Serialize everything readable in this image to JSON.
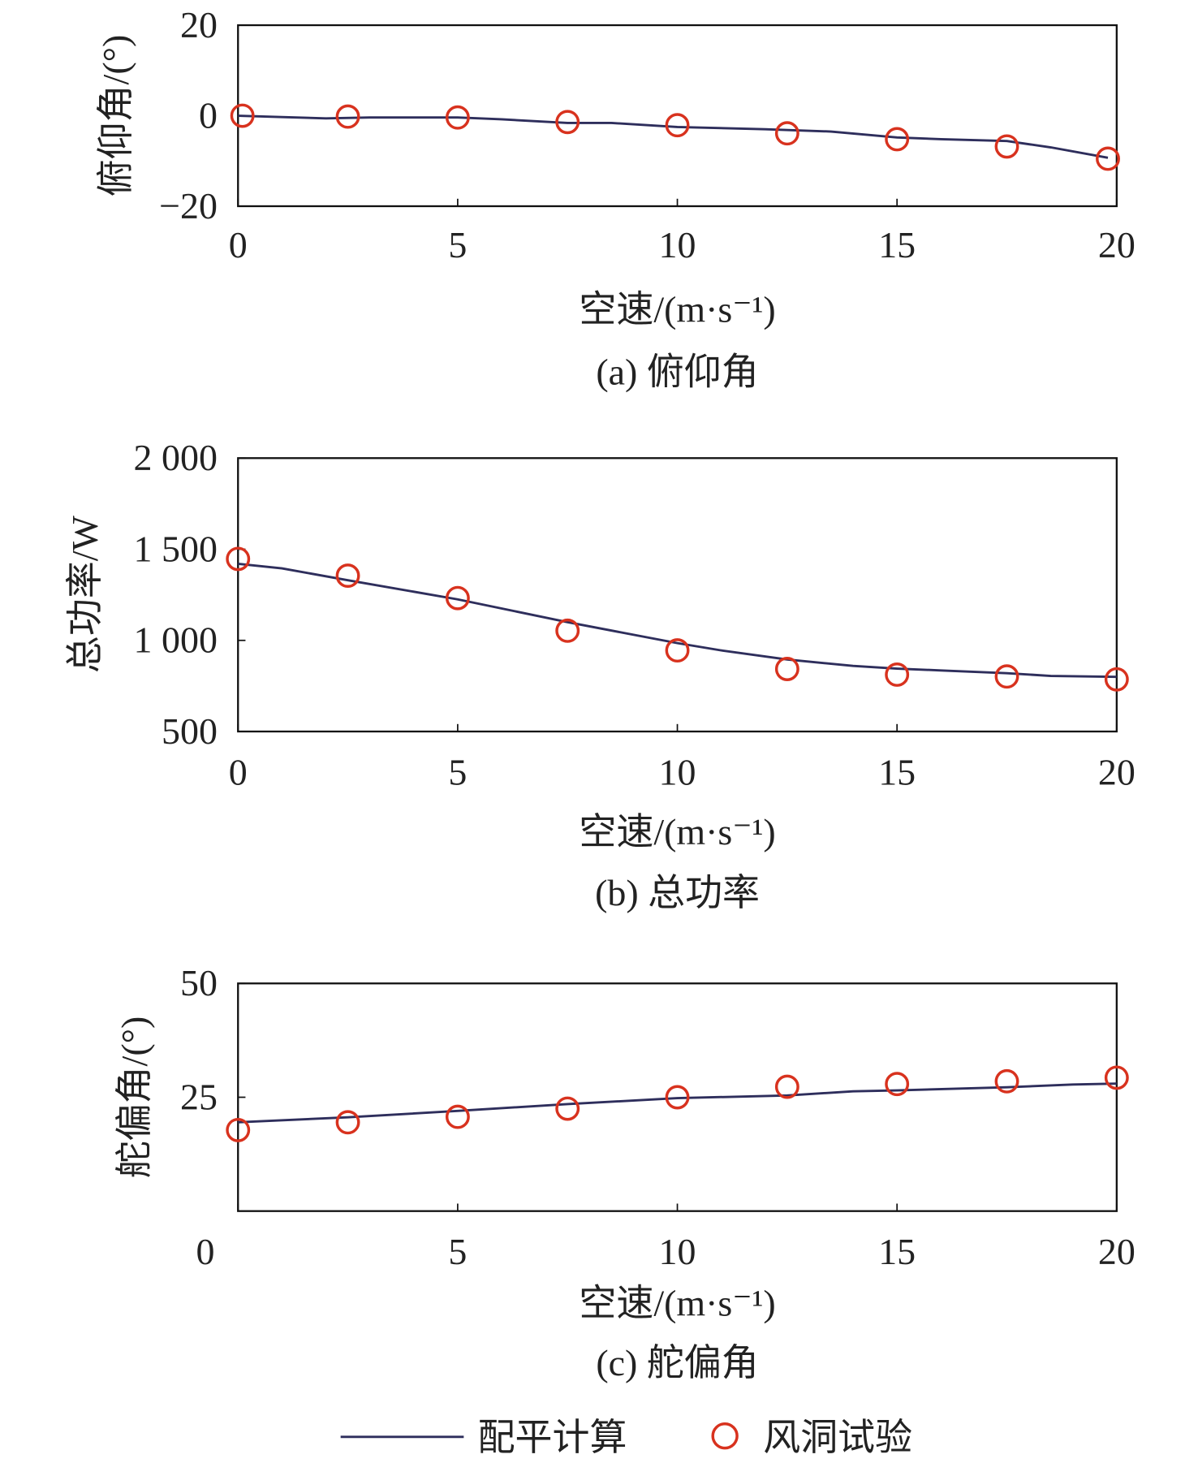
{
  "colors": {
    "line": "#2e2e5c",
    "marker": "#d8321e",
    "axis": "#111111"
  },
  "legend": {
    "line_label": "配平计算",
    "marker_label": "风洞试验",
    "placement": "bottom-center"
  },
  "chart_data": [
    {
      "type": "line",
      "caption": "(a) 俯仰角",
      "xlabel": "空速/(m·s⁻¹)",
      "ylabel": "俯仰角/(°)",
      "xlim": [
        0,
        20
      ],
      "ylim": [
        -20,
        20
      ],
      "xticks": [
        "0",
        "5",
        "10",
        "15",
        "20"
      ],
      "xtick_values": [
        0,
        5,
        10,
        15,
        20
      ],
      "yticks": [
        "−20",
        "0",
        "20"
      ],
      "ytick_values": [
        -20,
        0,
        20
      ],
      "grid": false,
      "series": [
        {
          "name": "配平计算",
          "style": "line",
          "x": [
            0,
            1,
            2,
            3,
            5,
            6,
            7.5,
            8.5,
            10,
            12,
            13.5,
            15,
            16,
            17.5,
            18.5,
            19.8
          ],
          "y": [
            0,
            -0.3,
            -0.6,
            -0.4,
            -0.4,
            -0.8,
            -1.6,
            -1.6,
            -2.5,
            -3,
            -3.5,
            -4.8,
            -5.2,
            -5.6,
            -7,
            -9.3
          ]
        },
        {
          "name": "风洞试验",
          "style": "marker",
          "x": [
            0.1,
            2.5,
            5,
            7.5,
            10,
            12.5,
            15,
            17.5,
            19.8
          ],
          "y": [
            0,
            -0.2,
            -0.4,
            -1.4,
            -2.1,
            -3.9,
            -5.2,
            -6.8,
            -9.5
          ]
        }
      ]
    },
    {
      "type": "line",
      "caption": "(b) 总功率",
      "xlabel": "空速/(m·s⁻¹)",
      "ylabel": "总功率/W",
      "xlim": [
        0,
        20
      ],
      "ylim": [
        500,
        2000
      ],
      "xticks": [
        "0",
        "5",
        "10",
        "15",
        "20"
      ],
      "xtick_values": [
        0,
        5,
        10,
        15,
        20
      ],
      "yticks": [
        "500",
        "1 000",
        "1 500",
        "2 000"
      ],
      "ytick_values": [
        500,
        1000,
        1500,
        2000
      ],
      "grid": false,
      "series": [
        {
          "name": "配平计算",
          "style": "line",
          "x": [
            0,
            1,
            2.5,
            5,
            7.5,
            10,
            11,
            12.5,
            14,
            15,
            16,
            17.5,
            18.5,
            20
          ],
          "y": [
            1420,
            1395,
            1330,
            1225,
            1100,
            985,
            945,
            895,
            860,
            845,
            835,
            820,
            805,
            800
          ]
        },
        {
          "name": "风洞试验",
          "style": "marker",
          "x": [
            0,
            2.5,
            5,
            7.5,
            10,
            12.5,
            15,
            17.5,
            20
          ],
          "y": [
            1447,
            1355,
            1232,
            1053,
            945,
            843,
            812,
            802,
            786
          ]
        }
      ]
    },
    {
      "type": "line",
      "caption": "(c) 舵偏角",
      "xlabel": "空速/(m·s⁻¹)",
      "ylabel": "舵偏角/(°)",
      "xlim": [
        0,
        20
      ],
      "ylim": [
        0,
        50
      ],
      "xticks": [
        "0",
        "5",
        "10",
        "15",
        "20"
      ],
      "xtick_values": [
        0,
        5,
        10,
        15,
        20
      ],
      "yticks": [
        "25",
        "50"
      ],
      "ytick_values": [
        25,
        50
      ],
      "grid": false,
      "series": [
        {
          "name": "配平计算",
          "style": "line",
          "x": [
            0,
            2.5,
            5,
            7.5,
            10,
            12.5,
            14,
            15,
            17.5,
            19,
            20
          ],
          "y": [
            19.5,
            20.6,
            22,
            23.5,
            24.8,
            25.4,
            26.3,
            26.5,
            27.2,
            27.8,
            28
          ]
        },
        {
          "name": "风洞试验",
          "style": "marker",
          "x": [
            0,
            2.5,
            5,
            7.5,
            10,
            12.5,
            15,
            17.5,
            20
          ],
          "y": [
            17.8,
            19.5,
            20.7,
            22.5,
            25.0,
            27.3,
            27.9,
            28.5,
            29.3
          ]
        }
      ]
    }
  ]
}
